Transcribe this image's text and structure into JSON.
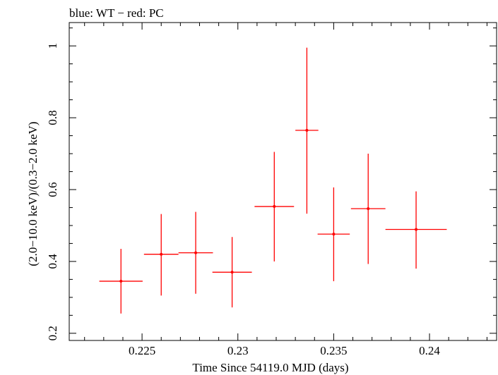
{
  "chart_data": {
    "type": "scatter",
    "title": "blue: WT − red: PC",
    "xlabel": "Time Since 54119.0 MJD (days)",
    "ylabel": "(2.0−10.0 keV)/(0.3−2.0 keV)",
    "xlim": [
      0.2212,
      0.2435
    ],
    "ylim": [
      0.18,
      1.065
    ],
    "x_ticks": [
      0.225,
      0.23,
      0.235,
      0.24
    ],
    "x_tick_labels": [
      "0.225",
      "0.23",
      "0.235",
      "0.24"
    ],
    "y_ticks": [
      0.2,
      0.4,
      0.6,
      0.8,
      1.0
    ],
    "y_tick_labels": [
      "0.2",
      "0.4",
      "0.6",
      "0.8",
      "1"
    ],
    "grid": false,
    "series": [
      {
        "color": "#ff0000",
        "points": [
          {
            "x": 0.2239,
            "xerr": 0.00113,
            "y": 0.345,
            "ylo": 0.255,
            "yhi": 0.435
          },
          {
            "x": 0.226,
            "xerr": 0.0009,
            "y": 0.42,
            "ylo": 0.305,
            "yhi": 0.532
          },
          {
            "x": 0.2278,
            "xerr": 0.0009,
            "y": 0.424,
            "ylo": 0.31,
            "yhi": 0.538
          },
          {
            "x": 0.2297,
            "xerr": 0.00103,
            "y": 0.37,
            "ylo": 0.272,
            "yhi": 0.468
          },
          {
            "x": 0.2319,
            "xerr": 0.00103,
            "y": 0.553,
            "ylo": 0.4,
            "yhi": 0.705
          },
          {
            "x": 0.2336,
            "xerr": 0.0006,
            "y": 0.765,
            "ylo": 0.533,
            "yhi": 0.995
          },
          {
            "x": 0.235,
            "xerr": 0.00084,
            "y": 0.476,
            "ylo": 0.345,
            "yhi": 0.606
          },
          {
            "x": 0.2368,
            "xerr": 0.0009,
            "y": 0.547,
            "ylo": 0.393,
            "yhi": 0.7
          },
          {
            "x": 0.2393,
            "xerr": 0.0016,
            "y": 0.489,
            "ylo": 0.38,
            "yhi": 0.595
          }
        ]
      }
    ]
  }
}
